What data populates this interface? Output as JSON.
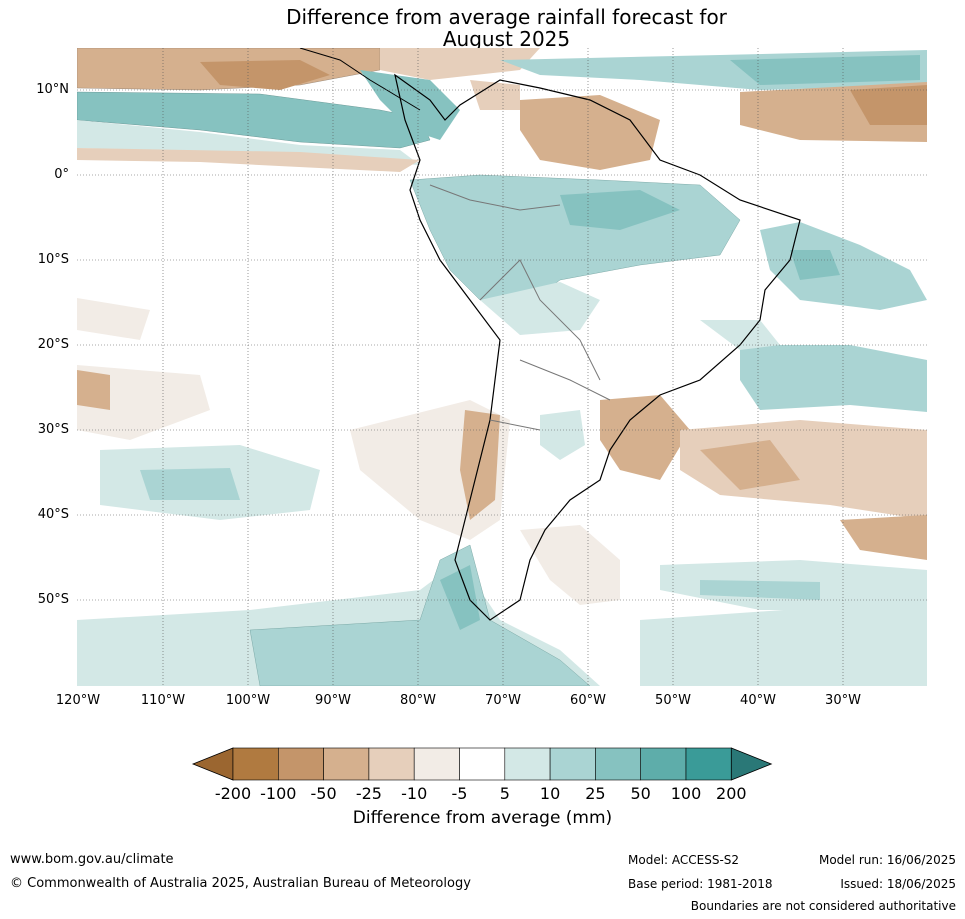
{
  "title": {
    "line1": "Difference from average rainfall forecast for",
    "line2": "August 2025"
  },
  "axes": {
    "lat_ticks": [
      "10°N",
      "0°",
      "10°S",
      "20°S",
      "30°S",
      "40°S",
      "50°S"
    ],
    "lon_ticks": [
      "120°W",
      "110°W",
      "100°W",
      "90°W",
      "80°W",
      "70°W",
      "60°W",
      "50°W",
      "40°W",
      "30°W"
    ],
    "grid": true
  },
  "colorbar": {
    "labels": [
      "-200",
      "-100",
      "-50",
      "-25",
      "-10",
      "-5",
      "5",
      "10",
      "25",
      "50",
      "100",
      "200"
    ],
    "colors": [
      "#9b6630",
      "#b07a40",
      "#c4956a",
      "#d5b08e",
      "#e6cfbb",
      "#f2ece6",
      "#ffffff",
      "#d3e8e6",
      "#aad4d3",
      "#86c2c0",
      "#5eadaa",
      "#3a9b98",
      "#2a7877"
    ],
    "title": "Difference from average (mm)"
  },
  "footer": {
    "website": "www.bom.gov.au/climate",
    "copyright": "© Commonwealth of Australia 2025, Australian Bureau of Meteorology",
    "model": "Model: ACCESS-S2",
    "base_period": "Base period: 1981-2018",
    "model_run": "Model run: 16/06/2025",
    "issued": "Issued: 18/06/2025",
    "disclaimer": "Boundaries are not considered authoritative"
  }
}
